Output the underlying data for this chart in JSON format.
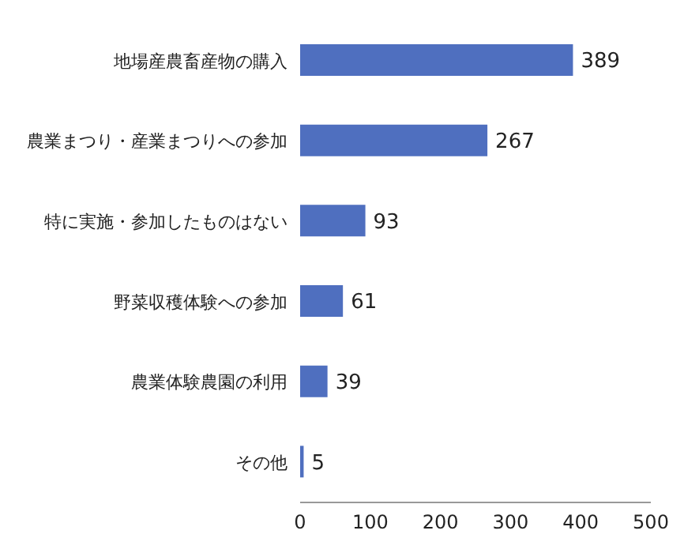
{
  "chart_data": {
    "type": "bar",
    "orientation": "horizontal",
    "categories": [
      "地場産農畜産物の購入",
      "農業まつり・産業まつりへの参加",
      "特に実施・参加したものはない",
      "野菜収穫体験への参加",
      "農業体験農園の利用",
      "その他"
    ],
    "values": [
      389,
      267,
      93,
      61,
      39,
      5
    ],
    "color": "#4f6fbf",
    "xlim": [
      0,
      500
    ],
    "xticks": [
      0,
      100,
      200,
      300,
      400,
      500
    ],
    "data_labels": true,
    "grid": false,
    "legend": false
  }
}
